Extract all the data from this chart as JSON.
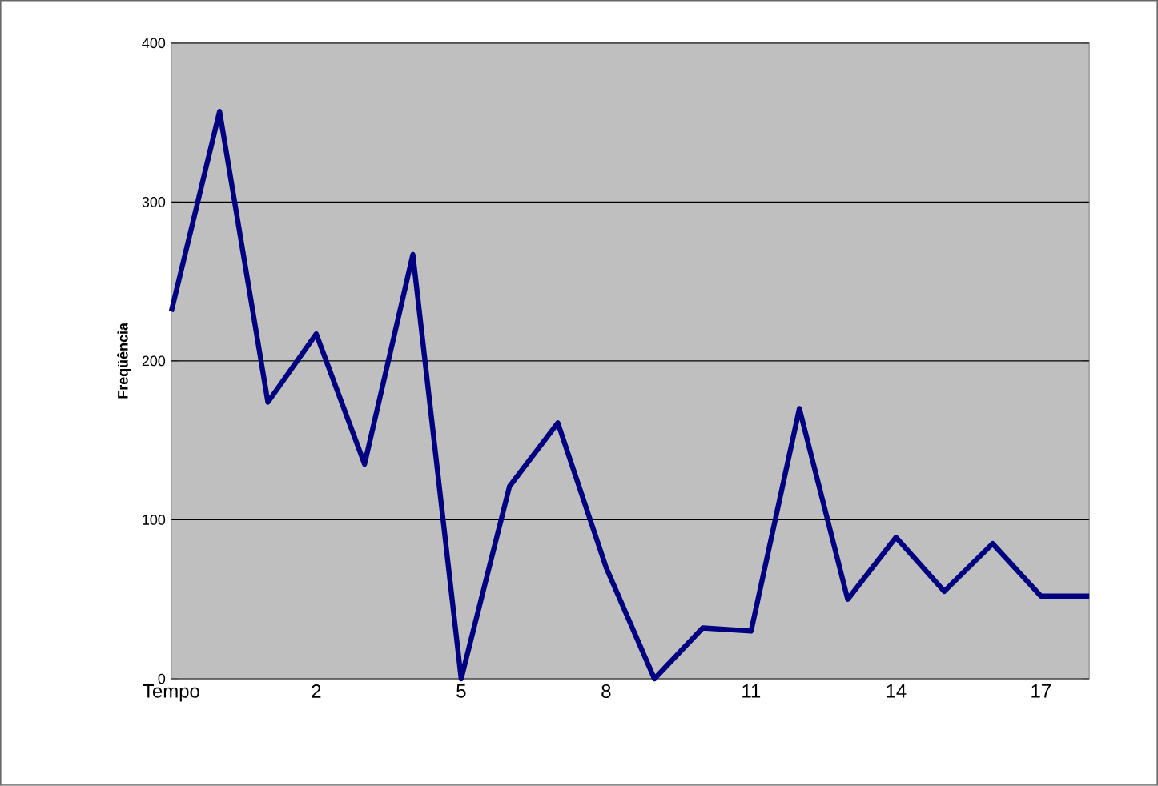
{
  "chart_data": {
    "type": "line",
    "ylabel": "Freqüência",
    "categories": [
      "Tempo",
      null,
      null,
      "2",
      null,
      null,
      "5",
      null,
      null,
      "8",
      null,
      null,
      "11",
      null,
      null,
      "14",
      null,
      null,
      "17",
      null
    ],
    "series": [
      {
        "color": "#000080",
        "values": [
          231,
          357,
          174,
          217,
          135,
          267,
          0,
          121,
          161,
          70,
          0,
          32,
          30,
          170,
          50,
          89,
          55,
          85,
          52,
          52
        ]
      }
    ],
    "ylim": [
      0,
      400
    ],
    "yticks": [
      0,
      100,
      200,
      300,
      400
    ],
    "grid": "y",
    "marker": "none",
    "line_style": "solid"
  }
}
